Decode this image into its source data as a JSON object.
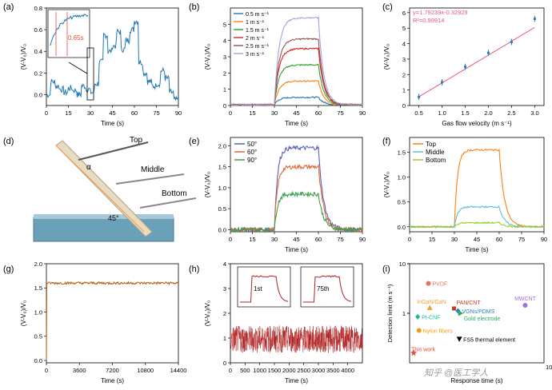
{
  "panels": {
    "a": {
      "label": "(a)",
      "ylabel": "(V-V₀)/V₀",
      "xlabel": "Time (s)",
      "inset_label": "0.65s"
    },
    "b": {
      "label": "(b)",
      "ylabel": "(V-V₀)/V₀",
      "xlabel": "Time (s)"
    },
    "c": {
      "label": "(c)",
      "ylabel": "(V-V₀)/V₀",
      "xlabel": "Gas flow velocity (m s⁻¹)",
      "fit_eq": "y=1.79239x-0.32929",
      "fit_r2": "R²=0.99914"
    },
    "d": {
      "label": "(d)",
      "angle_label": "α",
      "angle_45": "45°",
      "top": "Top",
      "middle": "Middle",
      "bottom": "Bottom"
    },
    "e": {
      "label": "(e)",
      "ylabel": "(V-V₀)/V₀",
      "xlabel": "Time (s)"
    },
    "f": {
      "label": "(f)",
      "ylabel": "(V-V₀)/V₀",
      "xlabel": "Time (s)"
    },
    "g": {
      "label": "(g)",
      "ylabel": "(V-V₀)/V₀",
      "xlabel": "Time (s)"
    },
    "h": {
      "label": "(h)",
      "ylabel": "(V-V₀)/V₀",
      "xlabel": "Time (s)",
      "inset1": "1st",
      "inset2": "75th"
    },
    "i": {
      "label": "(i)",
      "ylabel": "Detection limit (m s⁻¹)",
      "xlabel": "Response time (s)"
    }
  },
  "watermark": "知乎 @医工学人",
  "colors": {
    "blue": "#1f77b4",
    "black": "#000000",
    "red": "#c0392b",
    "orange": "#ff7f0e",
    "cyan": "#5bc0de",
    "lime": "#9acd32",
    "brown": "#b5651d"
  },
  "chart_data": [
    {
      "panel": "a",
      "type": "line",
      "xlim": [
        0,
        90
      ],
      "ylim": [
        -0.1,
        0.8
      ],
      "xticks": [
        "0",
        "15",
        "30",
        "45",
        "60",
        "75",
        "90"
      ],
      "yticks": [
        "0.0",
        "0.2",
        "0.4",
        "0.6",
        "0.8"
      ],
      "series": [
        {
          "color": "#1f77b4",
          "x": [
            0,
            3,
            6,
            9,
            12,
            15,
            18,
            21,
            24,
            27,
            30,
            33,
            36,
            39,
            42,
            45,
            48,
            51,
            54,
            57,
            60,
            63,
            66,
            69,
            72,
            75,
            78,
            81,
            84,
            87,
            90
          ],
          "y": [
            0.0,
            0.12,
            0.08,
            0.05,
            0.02,
            0.06,
            0.04,
            0.0,
            0.08,
            0.05,
            0.02,
            0.1,
            0.3,
            0.55,
            0.4,
            0.45,
            0.58,
            0.42,
            0.5,
            0.6,
            0.68,
            0.3,
            0.2,
            0.12,
            0.08,
            0.1,
            0.22,
            0.15,
            0.02,
            -0.05,
            -0.02
          ]
        }
      ]
    },
    {
      "panel": "b",
      "type": "line",
      "xlim": [
        0,
        90
      ],
      "ylim": [
        0,
        6
      ],
      "xticks": [
        "0",
        "15",
        "30",
        "45",
        "60",
        "75",
        "90"
      ],
      "yticks": [
        "0",
        "1",
        "2",
        "3",
        "4",
        "5"
      ],
      "series": [
        {
          "name": "0.5 m s⁻¹",
          "color": "#1f77b4",
          "plateau": 0.5
        },
        {
          "name": "1   m s⁻¹",
          "color": "#ff7f0e",
          "plateau": 1.5
        },
        {
          "name": "1.5 m s⁻¹",
          "color": "#2ca02c",
          "plateau": 2.5
        },
        {
          "name": "2   m s⁻¹",
          "color": "#d62728",
          "plateau": 3.5
        },
        {
          "name": "2.5 m s⁻¹",
          "color": "#8c564b",
          "plateau": 4.1
        },
        {
          "name": "3   m s⁻¹",
          "color": "#b19cd9",
          "plateau": 5.4
        }
      ]
    },
    {
      "panel": "c",
      "type": "scatter",
      "xlim": [
        0.3,
        3.2
      ],
      "ylim": [
        0,
        6.3
      ],
      "xticks": [
        "0.5",
        "1.0",
        "1.5",
        "2.0",
        "2.5",
        "3.0"
      ],
      "yticks": [
        "0",
        "1",
        "2",
        "3",
        "4",
        "5",
        "6"
      ],
      "x": [
        0.5,
        1.0,
        1.5,
        2.0,
        2.5,
        3.0
      ],
      "y": [
        0.55,
        1.5,
        2.5,
        3.4,
        4.1,
        5.6
      ],
      "fit": {
        "slope": 1.79239,
        "intercept": -0.32929
      }
    },
    {
      "panel": "e",
      "type": "line",
      "xlim": [
        0,
        90
      ],
      "ylim": [
        -0.05,
        2.2
      ],
      "xticks": [
        "0",
        "15",
        "30",
        "45",
        "60",
        "75",
        "90"
      ],
      "yticks": [
        "0.0",
        "0.5",
        "1.0",
        "1.5",
        "2.0"
      ],
      "series": [
        {
          "name": "50°",
          "color": "#5b5fb8",
          "plateau": 1.95
        },
        {
          "name": "60°",
          "color": "#e0693a",
          "plateau": 1.5
        },
        {
          "name": "90°",
          "color": "#3aa04a",
          "plateau": 0.85
        }
      ]
    },
    {
      "panel": "f",
      "type": "line",
      "xlim": [
        0,
        90
      ],
      "ylim": [
        -0.1,
        1.8
      ],
      "xticks": [
        "0",
        "15",
        "30",
        "45",
        "60",
        "75",
        "90"
      ],
      "yticks": [
        "0.0",
        "0.5",
        "1.0",
        "1.5"
      ],
      "series": [
        {
          "name": "Top",
          "color": "#ff7f0e",
          "plateau": 1.55
        },
        {
          "name": "Middle",
          "color": "#5bc0de",
          "plateau": 0.4
        },
        {
          "name": "Bottom",
          "color": "#9acd32",
          "plateau": 0.08
        }
      ]
    },
    {
      "panel": "g",
      "type": "line",
      "xlim": [
        0,
        14400
      ],
      "ylim": [
        -0.05,
        2.0
      ],
      "xticks": [
        "0",
        "3600",
        "7200",
        "10800",
        "14400"
      ],
      "yticks": [
        "0.0",
        "0.5",
        "1.0",
        "1.5",
        "2.0"
      ],
      "series": [
        {
          "color": "#b5651d",
          "plateau": 1.6
        }
      ]
    },
    {
      "panel": "h",
      "type": "line",
      "xlim": [
        0,
        4500
      ],
      "ylim": [
        0,
        4
      ],
      "xticks": [
        "0",
        "500",
        "1000",
        "1500",
        "2000",
        "2500",
        "3000",
        "3500",
        "4000"
      ],
      "yticks": [
        "0",
        "1",
        "2",
        "3",
        "4"
      ]
    },
    {
      "panel": "i",
      "type": "scatter",
      "xlim": [
        0,
        100
      ],
      "ylim": [
        0.1,
        10
      ],
      "yscale": "log",
      "xticks": [
        "100"
      ],
      "yticks": [
        "1",
        "10"
      ],
      "points": [
        {
          "name": "PVDF",
          "x": 14,
          "y": 4.0,
          "color": "#e8735a",
          "marker": "circle"
        },
        {
          "name": "MWCNT",
          "x": 86,
          "y": 1.45,
          "color": "#a070e0",
          "marker": "circle"
        },
        {
          "name": "InGaN/GaN",
          "x": 15,
          "y": 1.3,
          "color": "#f0a030",
          "marker": "triangle"
        },
        {
          "name": "PAN/CNT",
          "x": 33,
          "y": 1.25,
          "color": "#c0392b",
          "marker": "square"
        },
        {
          "name": "VGNs/PDMS",
          "x": 36,
          "y": 1.12,
          "color": "#2980b9",
          "marker": "diamond"
        },
        {
          "name": "Gold electrode",
          "x": 38,
          "y": 1.0,
          "color": "#27ae60",
          "marker": "triangle-right"
        },
        {
          "name": "Pt-CNF",
          "x": 6,
          "y": 0.85,
          "color": "#1abc9c",
          "marker": "diamond"
        },
        {
          "name": "Nylon fibers",
          "x": 7,
          "y": 0.45,
          "color": "#f39c12",
          "marker": "circle"
        },
        {
          "name": "FS5 thermal element",
          "x": 37,
          "y": 0.3,
          "color": "#000",
          "marker": "triangle-down"
        },
        {
          "name": "This work",
          "x": 3,
          "y": 0.16,
          "color": "#e74c3c",
          "marker": "star"
        }
      ]
    }
  ]
}
